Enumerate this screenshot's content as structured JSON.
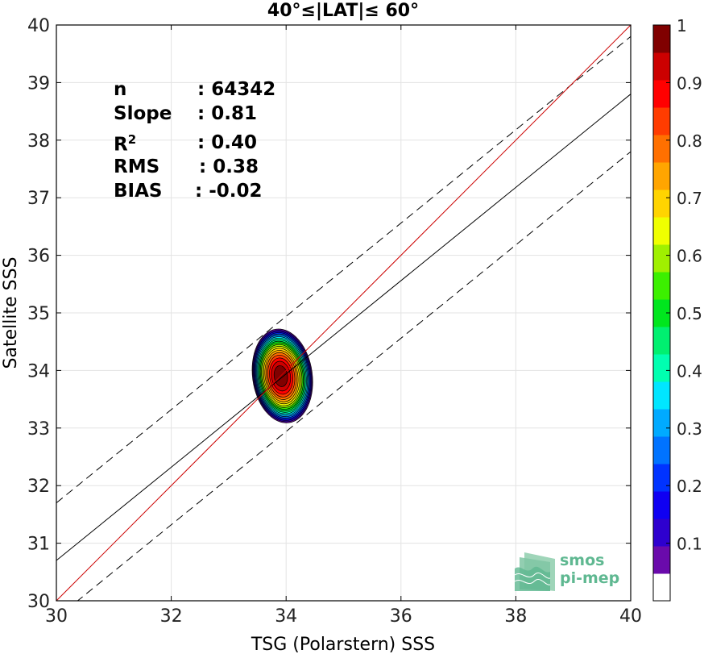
{
  "chart_data": {
    "type": "heatmap",
    "title": "40°≤|LAT|≤ 60°",
    "xlabel": "TSG (Polarstern) SSS",
    "ylabel": "Satellite SSS",
    "xlim": [
      30,
      40
    ],
    "ylim": [
      30,
      40
    ],
    "xticks": [
      30,
      32,
      34,
      36,
      38,
      40
    ],
    "yticks": [
      30,
      31,
      32,
      33,
      34,
      35,
      36,
      37,
      38,
      39,
      40
    ],
    "grid": true,
    "density_peak": {
      "x": 33.9,
      "y": 33.9
    },
    "density_contour_levels": [
      0.05,
      0.1,
      0.15,
      0.2,
      0.25,
      0.3,
      0.35,
      0.4,
      0.45,
      0.5,
      0.55,
      0.6,
      0.65,
      0.7,
      0.75,
      0.8,
      0.85,
      0.9,
      0.95,
      1.0
    ],
    "lines": {
      "identity": {
        "slope": 1.0,
        "intercept": 0.0,
        "color": "#cc0000"
      },
      "regression": {
        "slope": 0.81,
        "intercept": 6.4,
        "color": "#000000"
      },
      "upper_bound": {
        "slope": 0.81,
        "intercept": 7.4,
        "style": "dashed"
      },
      "lower_bound": {
        "slope": 0.81,
        "intercept": 5.4,
        "style": "dashed"
      }
    },
    "stats": [
      {
        "label": "n",
        "value": ": 64342"
      },
      {
        "label": "Slope",
        "value": ": 0.81"
      },
      {
        "label": "R",
        "sup": "2",
        "value": ": 0.40"
      },
      {
        "label": "RMS",
        "value": ": 0.38"
      },
      {
        "label": "BIAS",
        "value": ": -0.02"
      }
    ],
    "colorbar": {
      "range": [
        0,
        1
      ],
      "tick_labels": [
        "0.1",
        "0.2",
        "0.3",
        "0.4",
        "0.5",
        "0.6",
        "0.7",
        "0.8",
        "0.9",
        "1"
      ],
      "colors": [
        "#ffffff",
        "#6a0aab",
        "#2e00cf",
        "#0f00f2",
        "#0033ff",
        "#0073ff",
        "#00aaff",
        "#00e6ff",
        "#00ffb0",
        "#00f070",
        "#00e61e",
        "#3cf000",
        "#a0f000",
        "#f0ff00",
        "#ffd400",
        "#ffa500",
        "#ff7000",
        "#ff3c00",
        "#ff0000",
        "#cc0000",
        "#800000"
      ]
    }
  },
  "logo": {
    "line1": "smos",
    "line2": "pi-mep"
  }
}
